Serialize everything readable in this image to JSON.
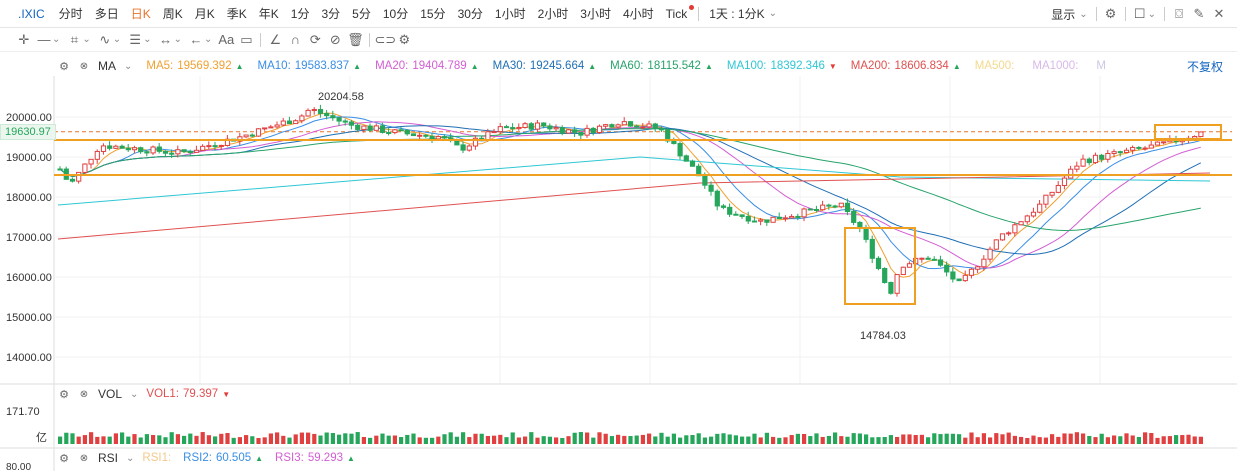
{
  "toolbar": {
    "symbol": ".IXIC",
    "periods": [
      "分时",
      "多日",
      "日K",
      "周K",
      "月K",
      "季K",
      "年K",
      "1分",
      "3分",
      "5分",
      "10分",
      "15分",
      "30分",
      "1小时",
      "2小时",
      "3小时",
      "4小时",
      "Tick"
    ],
    "active_period": "日K",
    "interval": "1天 : 1分K",
    "display": "显示",
    "icons": [
      "gear-icon",
      "square-icon",
      "camera-icon",
      "pencil-icon",
      "close-icon"
    ]
  },
  "drawtools": {
    "text_tool": "Aa",
    "icons": [
      "crosshair-icon",
      "line-icon",
      "rect-icon",
      "wave-icon",
      "fib-icon",
      "measure-icon",
      "arrow-icon",
      "text-icon",
      "comment-icon",
      "ruler-icon",
      "magnet-icon",
      "lock-icon",
      "eye-off-icon",
      "trash-icon",
      "link-icon",
      "settings-icon"
    ]
  },
  "ma_legend": {
    "label": "MA",
    "items": [
      {
        "name": "MA5:",
        "value": "19569.392",
        "color": "#f0a030",
        "arrow": "up"
      },
      {
        "name": "MA10:",
        "value": "19583.837",
        "color": "#3a8ee6",
        "arrow": "up"
      },
      {
        "name": "MA20:",
        "value": "19404.789",
        "color": "#d35ed3",
        "arrow": "up"
      },
      {
        "name": "MA30:",
        "value": "19245.664",
        "color": "#1f6fb5",
        "arrow": "up"
      },
      {
        "name": "MA60:",
        "value": "18115.542",
        "color": "#27a36b",
        "arrow": "up"
      },
      {
        "name": "MA100:",
        "value": "18392.346",
        "color": "#2ec7d4",
        "arrow": "dn"
      },
      {
        "name": "MA200:",
        "value": "18606.834",
        "color": "#e05050",
        "arrow": "up"
      },
      {
        "name": "MA500:",
        "value": "",
        "color": "#f3d98c",
        "arrow": ""
      },
      {
        "name": "MA1000:",
        "value": "",
        "color": "#d9b8e8",
        "arrow": ""
      },
      {
        "name": "M",
        "value": "",
        "color": "#c9c9e8",
        "arrow": ""
      }
    ],
    "adjust": "不复权"
  },
  "price_axis": {
    "ticks": [
      "20000.00",
      "19000.00",
      "18000.00",
      "17000.00",
      "16000.00",
      "15000.00",
      "14000.00"
    ],
    "current": "19630.97"
  },
  "annotations": {
    "high": "20204.58",
    "low": "14784.03"
  },
  "vol": {
    "label": "VOL",
    "vol1_label": "VOL1:",
    "vol1_value": "79.397",
    "axis_top": "171.70",
    "unit": "亿"
  },
  "rsi": {
    "label": "RSI",
    "rsi1_label": "RSI1:",
    "rsi2_label": "RSI2:",
    "rsi2_value": "60.505",
    "rsi3_label": "RSI3:",
    "rsi3_value": "59.293",
    "axis_top": "80.00"
  },
  "colors": {
    "up": "#e04040",
    "down": "#26a65b",
    "accent": "#e8742a",
    "guide": "#f0a020"
  }
}
